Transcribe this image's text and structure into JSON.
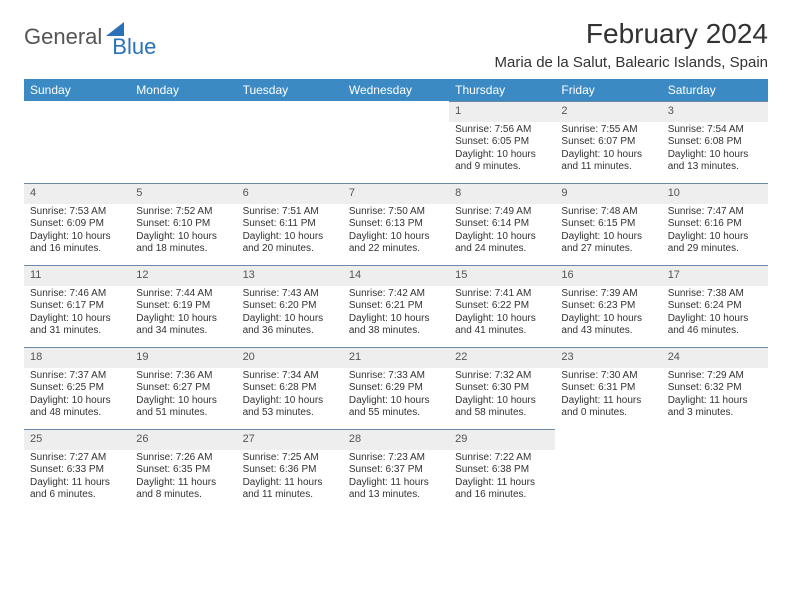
{
  "logo": {
    "text1": "General",
    "text2": "Blue"
  },
  "title": "February 2024",
  "subtitle": "Maria de la Salut, Balearic Islands, Spain",
  "colors": {
    "header_bg": "#3b8ac4",
    "header_text": "#ffffff",
    "daynum_bg": "#eeeeee",
    "row_divider": "#6a8aa8",
    "logo_blue": "#2a71b8",
    "text": "#333333"
  },
  "weekdays": [
    "Sunday",
    "Monday",
    "Tuesday",
    "Wednesday",
    "Thursday",
    "Friday",
    "Saturday"
  ],
  "weeks": [
    [
      {
        "empty": true
      },
      {
        "empty": true
      },
      {
        "empty": true
      },
      {
        "empty": true
      },
      {
        "n": "1",
        "sunrise": "7:56 AM",
        "sunset": "6:05 PM",
        "daylight": "10 hours and 9 minutes."
      },
      {
        "n": "2",
        "sunrise": "7:55 AM",
        "sunset": "6:07 PM",
        "daylight": "10 hours and 11 minutes."
      },
      {
        "n": "3",
        "sunrise": "7:54 AM",
        "sunset": "6:08 PM",
        "daylight": "10 hours and 13 minutes."
      }
    ],
    [
      {
        "n": "4",
        "sunrise": "7:53 AM",
        "sunset": "6:09 PM",
        "daylight": "10 hours and 16 minutes."
      },
      {
        "n": "5",
        "sunrise": "7:52 AM",
        "sunset": "6:10 PM",
        "daylight": "10 hours and 18 minutes."
      },
      {
        "n": "6",
        "sunrise": "7:51 AM",
        "sunset": "6:11 PM",
        "daylight": "10 hours and 20 minutes."
      },
      {
        "n": "7",
        "sunrise": "7:50 AM",
        "sunset": "6:13 PM",
        "daylight": "10 hours and 22 minutes."
      },
      {
        "n": "8",
        "sunrise": "7:49 AM",
        "sunset": "6:14 PM",
        "daylight": "10 hours and 24 minutes."
      },
      {
        "n": "9",
        "sunrise": "7:48 AM",
        "sunset": "6:15 PM",
        "daylight": "10 hours and 27 minutes."
      },
      {
        "n": "10",
        "sunrise": "7:47 AM",
        "sunset": "6:16 PM",
        "daylight": "10 hours and 29 minutes."
      }
    ],
    [
      {
        "n": "11",
        "sunrise": "7:46 AM",
        "sunset": "6:17 PM",
        "daylight": "10 hours and 31 minutes."
      },
      {
        "n": "12",
        "sunrise": "7:44 AM",
        "sunset": "6:19 PM",
        "daylight": "10 hours and 34 minutes."
      },
      {
        "n": "13",
        "sunrise": "7:43 AM",
        "sunset": "6:20 PM",
        "daylight": "10 hours and 36 minutes."
      },
      {
        "n": "14",
        "sunrise": "7:42 AM",
        "sunset": "6:21 PM",
        "daylight": "10 hours and 38 minutes."
      },
      {
        "n": "15",
        "sunrise": "7:41 AM",
        "sunset": "6:22 PM",
        "daylight": "10 hours and 41 minutes."
      },
      {
        "n": "16",
        "sunrise": "7:39 AM",
        "sunset": "6:23 PM",
        "daylight": "10 hours and 43 minutes."
      },
      {
        "n": "17",
        "sunrise": "7:38 AM",
        "sunset": "6:24 PM",
        "daylight": "10 hours and 46 minutes."
      }
    ],
    [
      {
        "n": "18",
        "sunrise": "7:37 AM",
        "sunset": "6:25 PM",
        "daylight": "10 hours and 48 minutes."
      },
      {
        "n": "19",
        "sunrise": "7:36 AM",
        "sunset": "6:27 PM",
        "daylight": "10 hours and 51 minutes."
      },
      {
        "n": "20",
        "sunrise": "7:34 AM",
        "sunset": "6:28 PM",
        "daylight": "10 hours and 53 minutes."
      },
      {
        "n": "21",
        "sunrise": "7:33 AM",
        "sunset": "6:29 PM",
        "daylight": "10 hours and 55 minutes."
      },
      {
        "n": "22",
        "sunrise": "7:32 AM",
        "sunset": "6:30 PM",
        "daylight": "10 hours and 58 minutes."
      },
      {
        "n": "23",
        "sunrise": "7:30 AM",
        "sunset": "6:31 PM",
        "daylight": "11 hours and 0 minutes."
      },
      {
        "n": "24",
        "sunrise": "7:29 AM",
        "sunset": "6:32 PM",
        "daylight": "11 hours and 3 minutes."
      }
    ],
    [
      {
        "n": "25",
        "sunrise": "7:27 AM",
        "sunset": "6:33 PM",
        "daylight": "11 hours and 6 minutes."
      },
      {
        "n": "26",
        "sunrise": "7:26 AM",
        "sunset": "6:35 PM",
        "daylight": "11 hours and 8 minutes."
      },
      {
        "n": "27",
        "sunrise": "7:25 AM",
        "sunset": "6:36 PM",
        "daylight": "11 hours and 11 minutes."
      },
      {
        "n": "28",
        "sunrise": "7:23 AM",
        "sunset": "6:37 PM",
        "daylight": "11 hours and 13 minutes."
      },
      {
        "n": "29",
        "sunrise": "7:22 AM",
        "sunset": "6:38 PM",
        "daylight": "11 hours and 16 minutes."
      },
      {
        "empty": true
      },
      {
        "empty": true
      }
    ]
  ],
  "labels": {
    "sunrise": "Sunrise: ",
    "sunset": "Sunset: ",
    "daylight": "Daylight: "
  }
}
